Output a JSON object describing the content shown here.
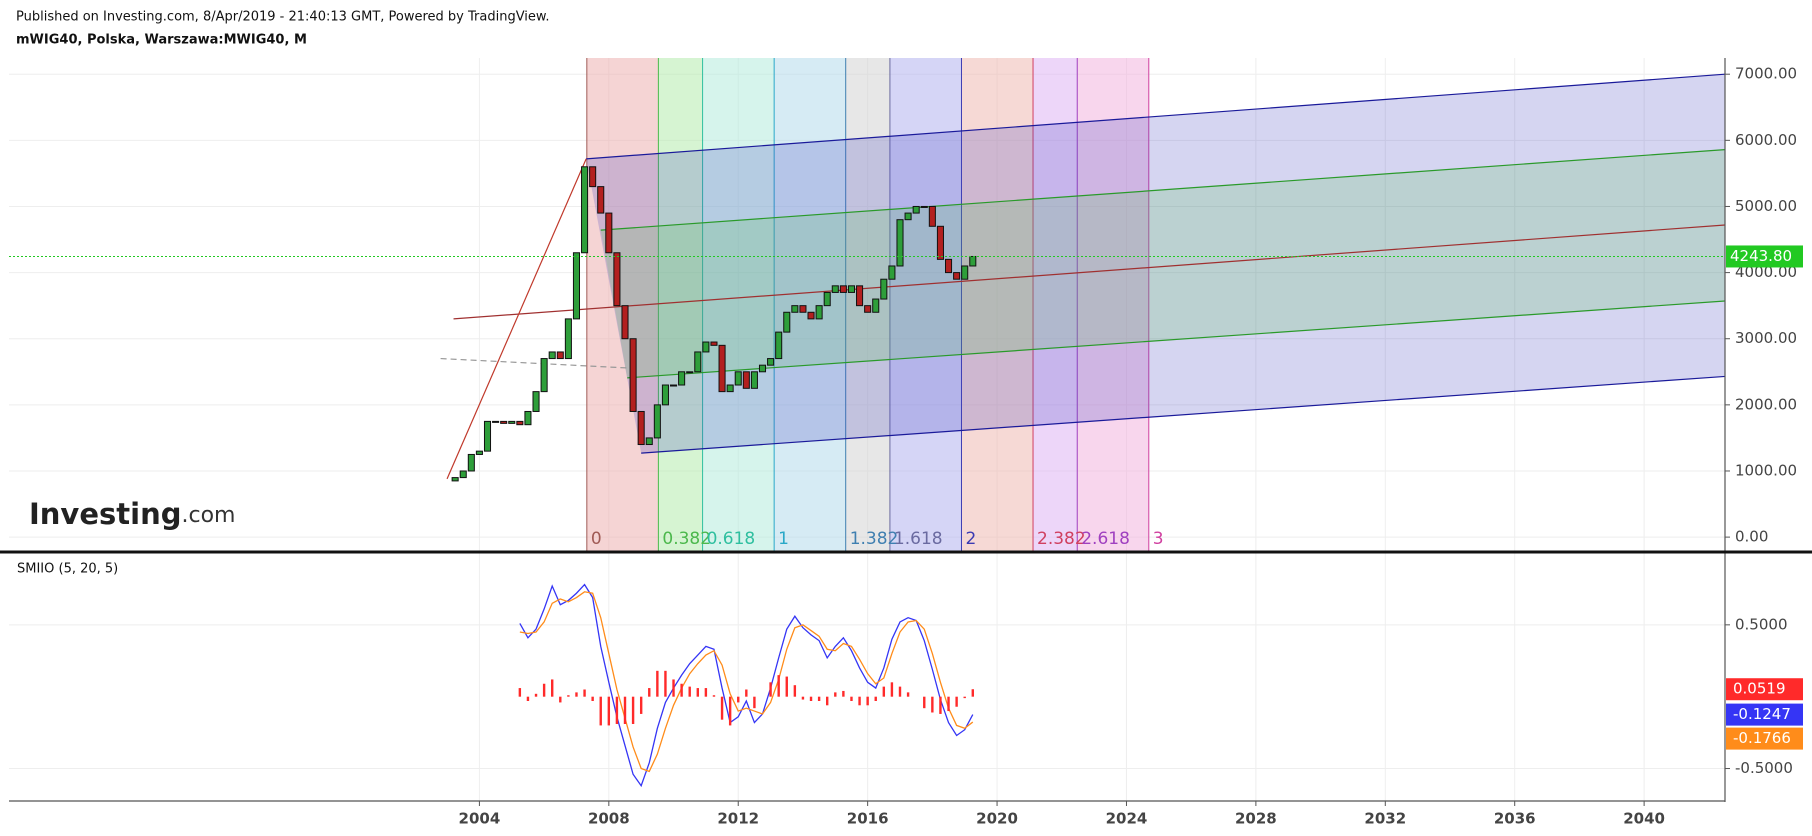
{
  "header": {
    "published": "Published on Investing.com, 8/Apr/2019 - 21:40:13 GMT, Powered by TradingView.",
    "logo_main": "Investing",
    "logo_suffix": ".com"
  },
  "chart_data": [
    {
      "type": "candlestick",
      "title": "mWIG40, Polska, Warszawa:MWIG40, M",
      "xlim": [
        1989.46,
        2042.5
      ],
      "ylim": [
        -210,
        7245
      ],
      "xticks": [
        2004,
        2008,
        2012,
        2016,
        2020,
        2024,
        2028,
        2032,
        2036,
        2040
      ],
      "yticks": [
        {
          "value": 0,
          "label": "0.00"
        },
        {
          "value": 1000,
          "label": "1000.00"
        },
        {
          "value": 2000,
          "label": "2000.00"
        },
        {
          "value": 3000,
          "label": "3000.00"
        },
        {
          "value": 4000,
          "label": "4000.00"
        },
        {
          "value": 5000,
          "label": "5000.00"
        },
        {
          "value": 6000,
          "label": "6000.00"
        },
        {
          "value": 7000,
          "label": "7000.00"
        }
      ],
      "grid": true,
      "up_color": "#2e9e3a",
      "down_color": "#b3201f",
      "x": [
        2003.25,
        2003.5,
        2003.75,
        2004,
        2004.25,
        2004.5,
        2004.75,
        2005,
        2005.25,
        2005.5,
        2005.75,
        2006,
        2006.25,
        2006.5,
        2006.75,
        2007,
        2007.25,
        2007.5,
        2007.75,
        2008,
        2008.25,
        2008.5,
        2008.75,
        2009,
        2009.25,
        2009.5,
        2009.75,
        2010,
        2010.25,
        2010.5,
        2010.75,
        2011,
        2011.25,
        2011.5,
        2011.75,
        2012,
        2012.25,
        2012.5,
        2012.75,
        2013,
        2013.25,
        2013.5,
        2013.75,
        2014,
        2014.25,
        2014.5,
        2014.75,
        2015,
        2015.25,
        2015.5,
        2015.75,
        2016,
        2016.25,
        2016.5,
        2016.75,
        2017,
        2017.25,
        2017.5,
        2017.75,
        2018,
        2018.25,
        2018.5,
        2018.75,
        2019,
        2019.25
      ],
      "open": [
        850,
        900,
        1000,
        1250,
        1300,
        1750,
        1750,
        1720,
        1750,
        1700,
        1900,
        2200,
        2700,
        2800,
        2700,
        3300,
        4300,
        5600,
        5300,
        4900,
        4300,
        3500,
        3000,
        1900,
        1400,
        1500,
        2000,
        2300,
        2300,
        2500,
        2500,
        2800,
        2950,
        2900,
        2200,
        2300,
        2500,
        2250,
        2500,
        2600,
        2700,
        3100,
        3400,
        3500,
        3400,
        3300,
        3500,
        3700,
        3800,
        3700,
        3800,
        3500,
        3400,
        3600,
        3900,
        4100,
        4800,
        4900,
        5000,
        5000,
        4700,
        4200,
        4000,
        3900,
        4100
      ],
      "close": [
        900,
        1000,
        1250,
        1300,
        1750,
        1750,
        1720,
        1750,
        1700,
        1900,
        2200,
        2700,
        2800,
        2700,
        3300,
        4300,
        5600,
        5300,
        4900,
        4300,
        3500,
        3000,
        1900,
        1400,
        1500,
        2000,
        2300,
        2300,
        2500,
        2500,
        2800,
        2950,
        2900,
        2200,
        2300,
        2500,
        2250,
        2500,
        2600,
        2700,
        3100,
        3400,
        3500,
        3400,
        3300,
        3500,
        3700,
        3800,
        3700,
        3800,
        3500,
        3400,
        3600,
        3900,
        4100,
        4800,
        4900,
        5000,
        5000,
        4700,
        4200,
        4000,
        3900,
        4100,
        4243.8
      ],
      "last_price": {
        "value": 4243.8,
        "label": "4243.80",
        "color": "#22c922"
      },
      "fib_time_zones": {
        "start": 2007.32,
        "end": 2013.11,
        "levels": [
          0,
          0.382,
          0.618,
          1,
          1.382,
          1.618,
          2,
          2.382,
          2.618,
          3
        ],
        "line_colors": [
          "#a05a55",
          "#4cb84c",
          "#2fbf9f",
          "#2aa8c8",
          "#3f7fb0",
          "#6a6aa0",
          "#3b3bb3",
          "#d04060",
          "#a040c0",
          "#d040a0"
        ],
        "band_colors": [
          "#eba9a9",
          "#aeeaa6",
          "#aeeada",
          "#aed8ea",
          "#cfcfcf",
          "#acacee",
          "#edb4ab",
          "#dcaef3",
          "#f2addb"
        ]
      },
      "pitchfork": {
        "outer_fill": "#4040c0",
        "inner_fill": "#5fc35f",
        "lines": [
          {
            "color": "#1a1a9a",
            "x": [
              2007.3,
              2042.5
            ],
            "y": [
              5720,
              7000
            ]
          },
          {
            "color": "#1a1a9a",
            "x": [
              2009.0,
              2042.5
            ],
            "y": [
              1270,
              2430
            ]
          },
          {
            "color": "#2a9a2a",
            "x": [
              2007.75,
              2042.5
            ],
            "y": [
              4642,
              5860
            ]
          },
          {
            "color": "#2a9a2a",
            "x": [
              2008.57,
              2042.5
            ],
            "y": [
              2408,
              3570
            ]
          },
          {
            "color": "#a03030",
            "x": [
              2003.2,
              2042.5
            ],
            "y": [
              3300,
              4720
            ]
          }
        ]
      },
      "lines": [
        {
          "color": "#c0392b",
          "x": [
            2003.0,
            2007.3
          ],
          "y": [
            880,
            5720
          ]
        },
        {
          "color": "#999999",
          "x": [
            2002.8,
            2008.9
          ],
          "y": [
            2700,
            2550
          ],
          "dashed": true
        }
      ]
    },
    {
      "type": "line",
      "title": "SMIIO (5, 20, 5)",
      "ylim": [
        -0.726,
        1.0
      ],
      "yticks": [
        {
          "value": 0.5,
          "label": "0.5000"
        },
        {
          "value": -0.5,
          "label": "-0.5000"
        }
      ],
      "grid": true,
      "x": [
        2005.25,
        2005.5,
        2005.75,
        2006,
        2006.25,
        2006.5,
        2006.75,
        2007,
        2007.25,
        2007.5,
        2007.75,
        2008,
        2008.25,
        2008.5,
        2008.75,
        2009,
        2009.25,
        2009.5,
        2009.75,
        2010,
        2010.25,
        2010.5,
        2010.75,
        2011,
        2011.25,
        2011.5,
        2011.75,
        2012,
        2012.25,
        2012.5,
        2012.75,
        2013,
        2013.25,
        2013.5,
        2013.75,
        2014,
        2014.25,
        2014.5,
        2014.75,
        2015,
        2015.25,
        2015.5,
        2015.75,
        2016,
        2016.25,
        2016.5,
        2016.75,
        2017,
        2017.25,
        2017.5,
        2017.75,
        2018,
        2018.25,
        2018.5,
        2018.75,
        2019,
        2019.25
      ],
      "series": [
        {
          "color": "#3535f5",
          "kind": "line",
          "values": [
            0.51,
            0.41,
            0.47,
            0.61,
            0.77,
            0.64,
            0.67,
            0.72,
            0.78,
            0.69,
            0.35,
            0.1,
            -0.14,
            -0.34,
            -0.54,
            -0.62,
            -0.46,
            -0.22,
            -0.04,
            0.06,
            0.15,
            0.23,
            0.29,
            0.35,
            0.33,
            0.06,
            -0.18,
            -0.14,
            -0.03,
            -0.18,
            -0.12,
            0.06,
            0.27,
            0.47,
            0.56,
            0.48,
            0.43,
            0.39,
            0.27,
            0.35,
            0.41,
            0.32,
            0.2,
            0.1,
            0.06,
            0.2,
            0.4,
            0.52,
            0.55,
            0.53,
            0.39,
            0.19,
            -0.02,
            -0.18,
            -0.27,
            -0.23,
            -0.1247
          ]
        },
        {
          "color": "#ff8c1a",
          "kind": "line",
          "values": [
            0.45,
            0.44,
            0.45,
            0.52,
            0.65,
            0.68,
            0.66,
            0.69,
            0.73,
            0.72,
            0.55,
            0.3,
            0.05,
            -0.15,
            -0.35,
            -0.5,
            -0.52,
            -0.4,
            -0.22,
            -0.06,
            0.06,
            0.16,
            0.23,
            0.29,
            0.32,
            0.22,
            0.02,
            -0.1,
            -0.08,
            -0.1,
            -0.12,
            -0.04,
            0.12,
            0.33,
            0.48,
            0.5,
            0.46,
            0.42,
            0.33,
            0.32,
            0.37,
            0.35,
            0.26,
            0.16,
            0.09,
            0.13,
            0.3,
            0.45,
            0.52,
            0.53,
            0.47,
            0.3,
            0.1,
            -0.08,
            -0.2,
            -0.22,
            -0.1766
          ]
        },
        {
          "color": "#ff2a2a",
          "kind": "histogram",
          "values": [
            0.06,
            -0.03,
            0.02,
            0.09,
            0.12,
            -0.04,
            0.01,
            0.03,
            0.05,
            -0.03,
            -0.2,
            -0.2,
            -0.19,
            -0.19,
            -0.19,
            -0.12,
            0.06,
            0.18,
            0.18,
            0.12,
            0.09,
            0.07,
            0.06,
            0.06,
            0.01,
            -0.16,
            -0.2,
            -0.04,
            0.05,
            -0.08,
            0.0,
            0.1,
            0.15,
            0.14,
            0.08,
            -0.02,
            -0.03,
            -0.03,
            -0.06,
            0.03,
            0.04,
            -0.03,
            -0.06,
            -0.06,
            -0.03,
            0.07,
            0.1,
            0.07,
            0.03,
            0.0,
            -0.08,
            -0.11,
            -0.12,
            -0.1,
            -0.07,
            -0.01,
            0.0519
          ]
        }
      ]
    }
  ]
}
